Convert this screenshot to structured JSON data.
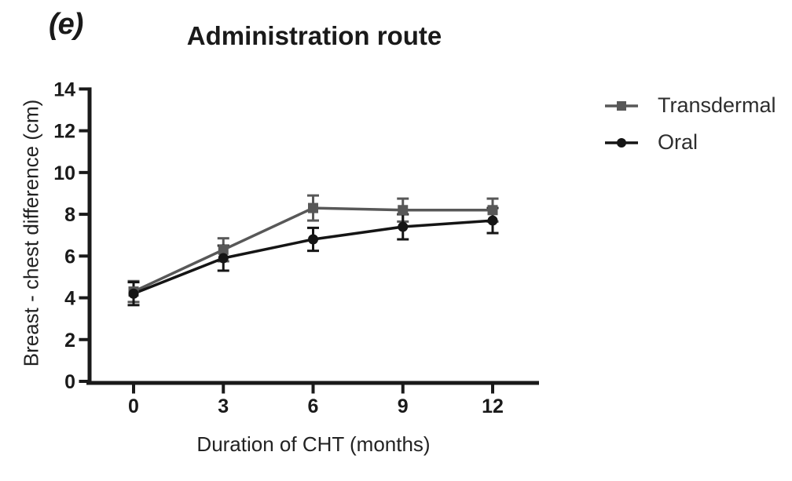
{
  "panel_label": "(e)",
  "title": "Administration route",
  "chart_data": {
    "type": "line",
    "x": [
      0,
      3,
      6,
      9,
      12
    ],
    "x_ticks": [
      0,
      3,
      6,
      9,
      12
    ],
    "y_ticks": [
      0,
      2,
      4,
      6,
      8,
      10,
      12,
      14
    ],
    "xlabel": "Duration of CHT (months)",
    "ylabel": "Breast - chest difference (cm)",
    "xlim": [
      0,
      12
    ],
    "ylim": [
      0,
      14
    ],
    "grid": false,
    "legend_position": "right",
    "error_bars": true,
    "series": [
      {
        "name": "Transdermal",
        "marker": "square",
        "color": "#585858",
        "values": [
          4.3,
          6.3,
          8.3,
          8.2,
          8.2
        ],
        "errors": [
          0.5,
          0.55,
          0.6,
          0.55,
          0.55
        ]
      },
      {
        "name": "Oral",
        "marker": "circle",
        "color": "#151515",
        "values": [
          4.2,
          5.9,
          6.8,
          7.4,
          7.7
        ],
        "errors": [
          0.55,
          0.6,
          0.55,
          0.6,
          0.6
        ]
      }
    ]
  },
  "colors": {
    "axis": "#1a1a1a",
    "text": "#1a1a1a",
    "legend_text": "#2e2e2e",
    "background": "#ffffff"
  }
}
